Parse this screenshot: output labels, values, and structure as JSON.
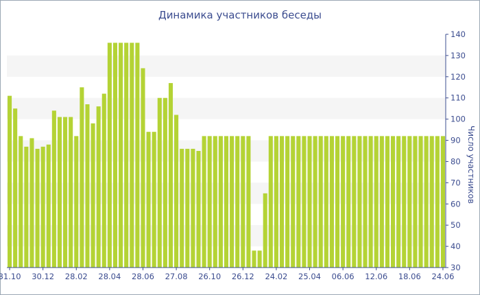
{
  "chart_data": {
    "type": "bar",
    "title": "Динамика участников беседы",
    "ylabel": "Число участников",
    "xlabel": "",
    "ylim": [
      30,
      140
    ],
    "y_ticks": [
      30,
      40,
      50,
      60,
      70,
      80,
      90,
      100,
      110,
      120,
      130,
      140
    ],
    "y_axis_side": "right",
    "x_tick_labels": [
      "31.10",
      "30.12",
      "28.02",
      "28.04",
      "28.06",
      "27.08",
      "26.10",
      "26.12",
      "24.02",
      "25.04",
      "06.06",
      "12.06",
      "18.06",
      "24.06"
    ],
    "x_tick_bar_index": [
      0,
      6,
      12,
      18,
      24,
      30,
      36,
      42,
      48,
      54,
      60,
      66,
      72,
      78
    ],
    "values": [
      111,
      105,
      92,
      87,
      91,
      86,
      87,
      88,
      104,
      101,
      101,
      101,
      92,
      115,
      107,
      98,
      106,
      112,
      136,
      136,
      136,
      136,
      136,
      136,
      124,
      94,
      94,
      110,
      110,
      117,
      102,
      86,
      86,
      86,
      85,
      92,
      92,
      92,
      92,
      92,
      92,
      92,
      92,
      92,
      38,
      38,
      65,
      92,
      92,
      92,
      92,
      92,
      92,
      92,
      92,
      92,
      92,
      92,
      92,
      92,
      92,
      92,
      92,
      92,
      92,
      92,
      92,
      92,
      92,
      92,
      92,
      92,
      92,
      92,
      92,
      92,
      92,
      92,
      92
    ],
    "bar_color": "#b4d335",
    "band_color": "#f5f5f5",
    "grid": false,
    "legend": "none"
  }
}
